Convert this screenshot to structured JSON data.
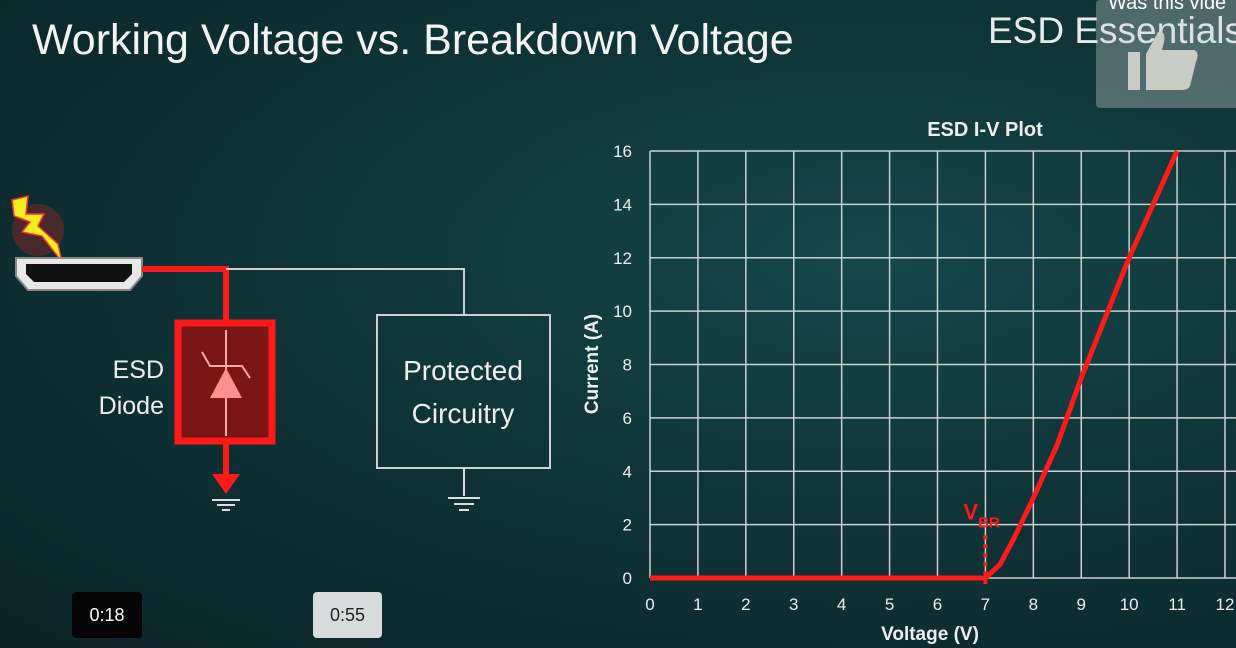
{
  "slide": {
    "title": "Working Voltage vs. Breakdown Voltage",
    "brand": "ESD Essentials",
    "diagram": {
      "diode_label_line1": "ESD",
      "diode_label_line2": "Diode",
      "box_label_line1": "Protected",
      "box_label_line2": "Circuitry",
      "icons": [
        "lightning-icon",
        "hdmi-connector-icon",
        "tvs-diode-icon",
        "ground-icon"
      ]
    }
  },
  "player": {
    "feedback_prompt": "Was this vide",
    "feedback_icon": "thumbs-up-icon",
    "time_current": "0:18",
    "time_total": "0:55"
  },
  "colors": {
    "curve": "#ff1a1a",
    "grid": "#c8d0d0",
    "background": "#0f3438"
  },
  "chart_data": {
    "type": "line",
    "title": "ESD I-V Plot",
    "xlabel": "Voltage (V)",
    "ylabel": "Current (A)",
    "xlim": [
      0,
      12
    ],
    "ylim": [
      0,
      16
    ],
    "xticks": [
      "0",
      "1",
      "2",
      "3",
      "4",
      "5",
      "6",
      "7",
      "8",
      "9",
      "10",
      "11",
      "12"
    ],
    "yticks": [
      "0",
      "2",
      "4",
      "6",
      "8",
      "10",
      "12",
      "14",
      "16"
    ],
    "grid": true,
    "x": [
      0,
      7,
      7.3,
      7.6,
      8,
      8.5,
      9,
      10,
      11
    ],
    "y": [
      0,
      0,
      0.5,
      1.5,
      3,
      5,
      7.5,
      12,
      16
    ],
    "annotation": {
      "text": "V",
      "subscript": "BR",
      "x": 7
    }
  }
}
